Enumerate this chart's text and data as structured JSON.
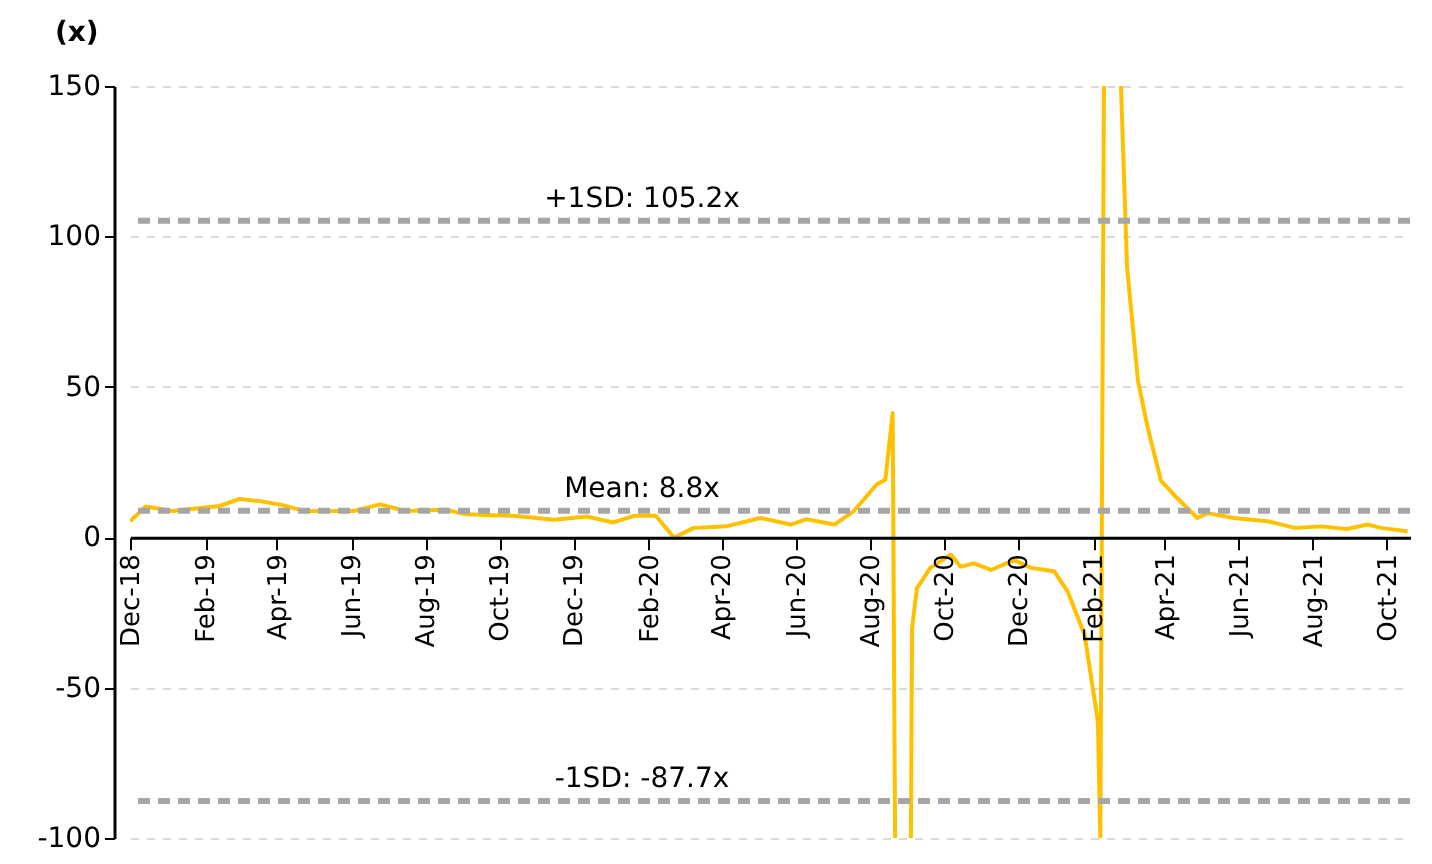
{
  "chart_data": {
    "type": "line",
    "ylabel": "(x)",
    "x": [
      "2018-12-01",
      "2018-12-14",
      "2019-01-05",
      "2019-01-30",
      "2019-02-13",
      "2019-03-01",
      "2019-03-18",
      "2019-04-03",
      "2019-04-24",
      "2019-06-03",
      "2019-06-25",
      "2019-07-16",
      "2019-08-18",
      "2019-09-04",
      "2019-10-13",
      "2019-11-15",
      "2019-12-12",
      "2020-01-03",
      "2020-01-20",
      "2020-02-07",
      "2020-02-22",
      "2020-03-09",
      "2020-04-05",
      "2020-05-03",
      "2020-05-28",
      "2020-06-10",
      "2020-07-03",
      "2020-07-19",
      "2020-08-07",
      "2020-08-14",
      "2020-08-20",
      "2020-08-22",
      "2020-08-27",
      "2020-09-04",
      "2020-09-05",
      "2020-09-09",
      "2020-09-20",
      "2020-10-07",
      "2020-10-15",
      "2020-10-26",
      "2020-11-09",
      "2020-11-28",
      "2020-12-12",
      "2020-12-31",
      "2021-01-11",
      "2021-01-25",
      "2021-02-05",
      "2021-02-07",
      "2021-02-10",
      "2021-02-17",
      "2021-02-24",
      "2021-03-01",
      "2021-03-10",
      "2021-03-18",
      "2021-03-29",
      "2021-04-11",
      "2021-04-28",
      "2021-05-06",
      "2021-05-28",
      "2021-06-25",
      "2021-07-17",
      "2021-08-08",
      "2021-08-29",
      "2021-09-15",
      "2021-09-26",
      "2021-10-18"
    ],
    "series": [
      {
        "color": "#ffc000",
        "values": [
          5.3,
          10.2,
          8.7,
          9.8,
          10.4,
          12.7,
          12,
          10.9,
          8.7,
          8.7,
          10.9,
          8.7,
          9.1,
          7.6,
          7.1,
          5.8,
          6.9,
          4.9,
          7.1,
          7.1,
          -0.2,
          3.1,
          3.6,
          6.4,
          4.2,
          6.0,
          4.2,
          8.7,
          17.6,
          19.1,
          41.3,
          -100,
          null,
          -100,
          -30.2,
          -16.9,
          -10.2,
          -5.8,
          -9.8,
          -8.7,
          -10.9,
          -7.6,
          -10.2,
          -11.3,
          -18,
          -32.4,
          -61.3,
          -100,
          150,
          null,
          150,
          89.8,
          52,
          36.4,
          18.7,
          13.1,
          6.4,
          8.0,
          6.4,
          5.3,
          3.1,
          3.6,
          2.7,
          4.2,
          3.1,
          2.0
        ]
      }
    ],
    "xlim": [
      "2018-12-01",
      "2021-10-20"
    ],
    "xticks": [
      {
        "value": "2018-12-01",
        "label": "Dec-18"
      },
      {
        "value": "2019-02-01",
        "label": "Feb-19"
      },
      {
        "value": "2019-04-01",
        "label": "Apr-19"
      },
      {
        "value": "2019-06-01",
        "label": "Jun-19"
      },
      {
        "value": "2019-08-01",
        "label": "Aug-19"
      },
      {
        "value": "2019-10-01",
        "label": "Oct-19"
      },
      {
        "value": "2019-12-01",
        "label": "Dec-19"
      },
      {
        "value": "2020-02-01",
        "label": "Feb-20"
      },
      {
        "value": "2020-04-01",
        "label": "Apr-20"
      },
      {
        "value": "2020-06-01",
        "label": "Jun-20"
      },
      {
        "value": "2020-08-01",
        "label": "Aug-20"
      },
      {
        "value": "2020-10-01",
        "label": "Oct-20"
      },
      {
        "value": "2020-12-01",
        "label": "Dec-20"
      },
      {
        "value": "2021-02-01",
        "label": "Feb-21"
      },
      {
        "value": "2021-04-01",
        "label": "Apr-21"
      },
      {
        "value": "2021-06-01",
        "label": "Jun-21"
      },
      {
        "value": "2021-08-01",
        "label": "Aug-21"
      },
      {
        "value": "2021-10-01",
        "label": "Oct-21"
      }
    ],
    "ylim": [
      -100,
      150
    ],
    "yticks": [
      -100,
      -50,
      0,
      50,
      100,
      150
    ],
    "grid": "y",
    "ref_lines": [
      {
        "axis": "y",
        "value": 105.2,
        "label": "+1SD: 105.2x",
        "color": "#a6a6a6",
        "line_style": "dashed"
      },
      {
        "axis": "y",
        "value": 8.8,
        "label": "Mean: 8.8x",
        "color": "#a6a6a6",
        "line_style": "dashed"
      },
      {
        "axis": "y",
        "value": -87.7,
        "label": "-1SD: -87.7x",
        "color": "#a6a6a6",
        "line_style": "dashed"
      }
    ],
    "legend": false,
    "marker": "none",
    "line_style": "solid"
  }
}
